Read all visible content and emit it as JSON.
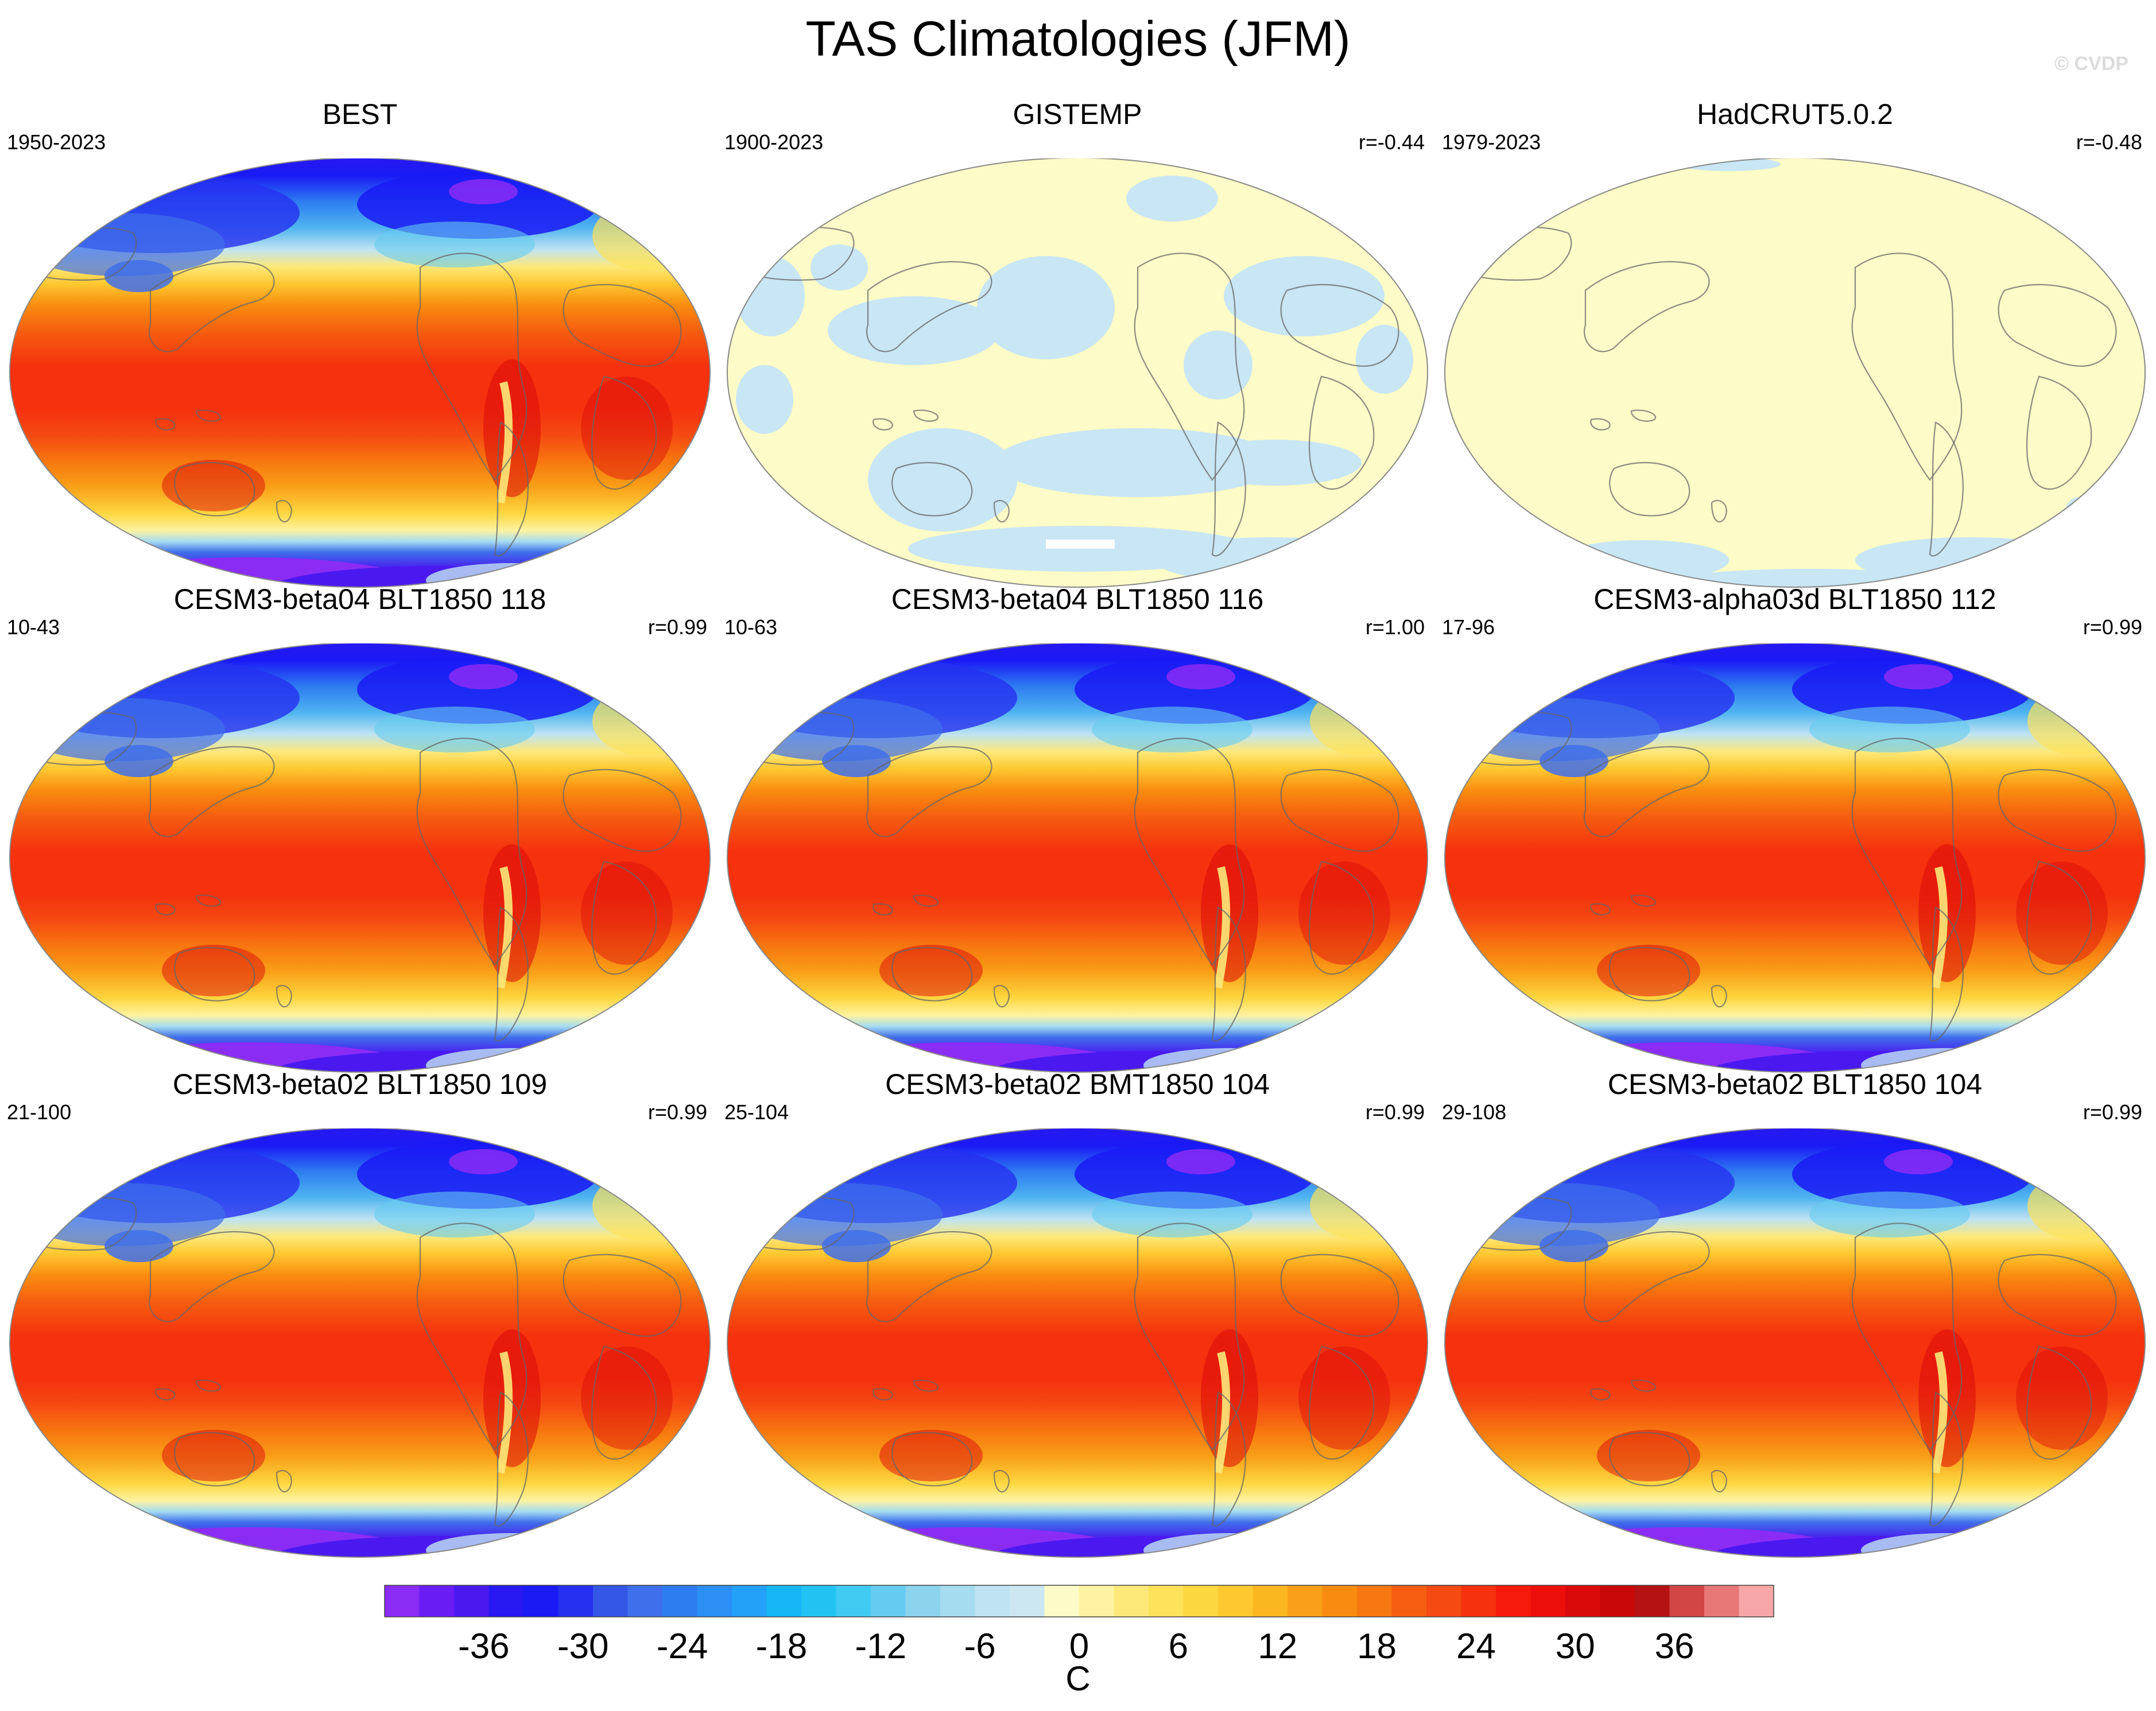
{
  "figure": {
    "title": "TAS Climatologies (JFM)",
    "watermark": "© CVDP",
    "unit": "C"
  },
  "panels": [
    {
      "title": "BEST",
      "years": "1950-2023",
      "r": "",
      "pattern": "full"
    },
    {
      "title": "GISTEMP",
      "years": "1900-2023",
      "r": "r=-0.44",
      "pattern": "gistemp"
    },
    {
      "title": "HadCRUT5.0.2",
      "years": "1979-2023",
      "r": "r=-0.48",
      "pattern": "hadcrut"
    },
    {
      "title": "CESM3-beta04 BLT1850 118",
      "years": "10-43",
      "r": "r=0.99",
      "pattern": "full"
    },
    {
      "title": "CESM3-beta04 BLT1850 116",
      "years": "10-63",
      "r": "r=1.00",
      "pattern": "full"
    },
    {
      "title": "CESM3-alpha03d BLT1850 112",
      "years": "17-96",
      "r": "r=0.99",
      "pattern": "full"
    },
    {
      "title": "CESM3-beta02 BLT1850 109",
      "years": "21-100",
      "r": "r=0.99",
      "pattern": "full"
    },
    {
      "title": "CESM3-beta02 BMT1850 104",
      "years": "25-104",
      "r": "r=0.99",
      "pattern": "full"
    },
    {
      "title": "CESM3-beta02 BLT1850 104",
      "years": "29-108",
      "r": "r=0.99",
      "pattern": "full"
    }
  ],
  "colorbar": {
    "tick_labels": [
      "-36",
      "-30",
      "-24",
      "-18",
      "-12",
      "-6",
      "0",
      "6",
      "12",
      "18",
      "24",
      "30",
      "36"
    ],
    "tick_values": [
      -36,
      -30,
      -24,
      -18,
      -12,
      -6,
      0,
      6,
      12,
      18,
      24,
      30,
      36
    ],
    "bin_edges_min": -42,
    "bin_edges_max": 42,
    "bin_width": 2,
    "colors": [
      "#8b2cf5",
      "#6a1cf5",
      "#4a19f0",
      "#2818f2",
      "#1a1af5",
      "#2630f0",
      "#3457e8",
      "#3f6fea",
      "#2e7df0",
      "#2b8ff5",
      "#23a0f7",
      "#16b6f7",
      "#22c3f2",
      "#3fcaf2",
      "#66cbf0",
      "#8cd3ee",
      "#a6dcf0",
      "#bfe3f2",
      "#cde7f2",
      "#fdfbc7",
      "#fdf3a2",
      "#fde97a",
      "#fde25a",
      "#fdd740",
      "#fdc830",
      "#fbb720",
      "#f9a018",
      "#f98c10",
      "#f77710",
      "#f55e10",
      "#f54a12",
      "#f5310e",
      "#f61a0c",
      "#ed0f0c",
      "#db0a0a",
      "#c90808",
      "#b51313",
      "#d24646",
      "#e87777",
      "#f6a6a6"
    ]
  }
}
